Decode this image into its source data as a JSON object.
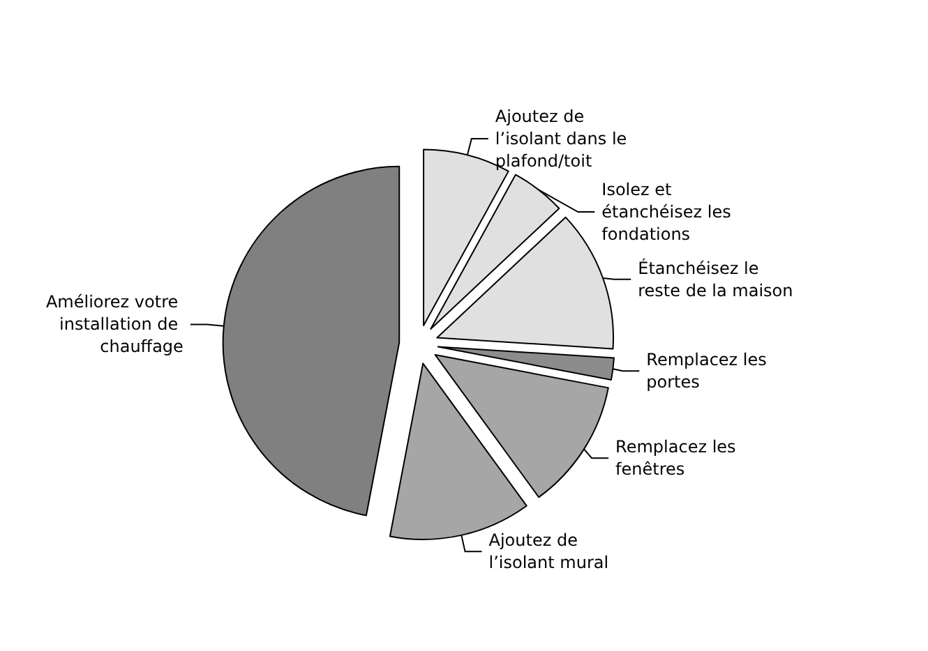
{
  "chart_data": {
    "type": "pie",
    "categories": [
      "Ajoutez de l’isolant dans le plafond/toit",
      "Isolez et étanchéisez les fondations",
      "Étanchéisez le reste de la maison",
      "Remplacez les portes",
      "Remplacez les fenêtres",
      "Ajoutez de l’isolant mural",
      "Améliorez votre installation de chauffage"
    ],
    "values": [
      8,
      5,
      13,
      2,
      12,
      13,
      47
    ],
    "colors": [
      "#e0e0e0",
      "#e0e0e0",
      "#e0e0e0",
      "#8c8c8c",
      "#a6a6a6",
      "#a6a6a6",
      "#808080"
    ]
  }
}
